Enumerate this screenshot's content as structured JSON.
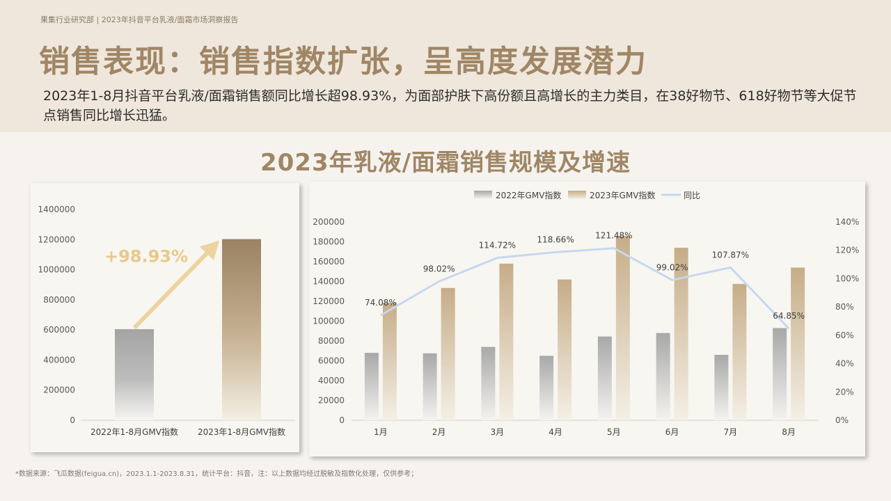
{
  "header": {
    "breadcrumb": "果集行业研究部 | 2023年抖音平台乳液/面霜市场洞察报告",
    "title": "销售表现：销售指数扩张，呈高度发展潜力",
    "summary": "2023年1-8月抖音平台乳液/面霜销售额同比增长超98.93%，为面部护肤下高份额且高增长的主力类目，在38好物节、618好物节等大促节点销售同比增长迅猛。"
  },
  "section_title": "2023年乳液/面霜销售规模及增速",
  "footnote": "*数据来源：飞瓜数据(feigua.cn)，2023.1.1-2023.8.31，统计平台：抖音，注：以上数据均经过脱敏及指数化处理，仅供参考；",
  "colors": {
    "accent": "#a08666",
    "series_2022": "#a8a8a8",
    "series_2023": "#c8b08c",
    "yoy_line": "#c6d8f0",
    "growth_arrow": "#ecd3a0",
    "growth_text": "#e8c98c"
  },
  "chart_data": [
    {
      "type": "bar",
      "categories": [
        "2022年1-8月GMV指数",
        "2023年1-8月GMV指数"
      ],
      "values": [
        605000,
        1203000
      ],
      "yticks": [
        "0",
        "200000",
        "400000",
        "600000",
        "800000",
        "1000000",
        "1200000",
        "1400000"
      ],
      "ylim": [
        0,
        1400000
      ],
      "annotation": "+98.93%"
    },
    {
      "type": "bar",
      "categories": [
        "1月",
        "2月",
        "3月",
        "4月",
        "5月",
        "6月",
        "7月",
        "8月"
      ],
      "series": [
        {
          "name": "2022年GMV指数",
          "values": [
            68000,
            67500,
            74000,
            65000,
            84500,
            88000,
            66000,
            93000
          ]
        },
        {
          "name": "2023年GMV指数",
          "values": [
            118500,
            133500,
            158000,
            142000,
            186000,
            174000,
            137500,
            154000
          ]
        }
      ],
      "line": {
        "name": "同比",
        "values": [
          74.08,
          98.02,
          114.72,
          118.66,
          121.48,
          99.02,
          107.87,
          64.85
        ],
        "labels": [
          "74.08%",
          "98.02%",
          "114.72%",
          "118.66%",
          "121.48%",
          "99.02%",
          "107.87%",
          "64.85%"
        ]
      },
      "yticks": [
        "0",
        "20000",
        "40000",
        "60000",
        "80000",
        "100000",
        "120000",
        "140000",
        "160000",
        "180000",
        "200000"
      ],
      "ylim": [
        0,
        200000
      ],
      "y2ticks": [
        "0%",
        "20%",
        "40%",
        "60%",
        "80%",
        "100%",
        "120%",
        "140%"
      ],
      "y2lim": [
        0,
        140
      ],
      "legend": "top"
    }
  ]
}
